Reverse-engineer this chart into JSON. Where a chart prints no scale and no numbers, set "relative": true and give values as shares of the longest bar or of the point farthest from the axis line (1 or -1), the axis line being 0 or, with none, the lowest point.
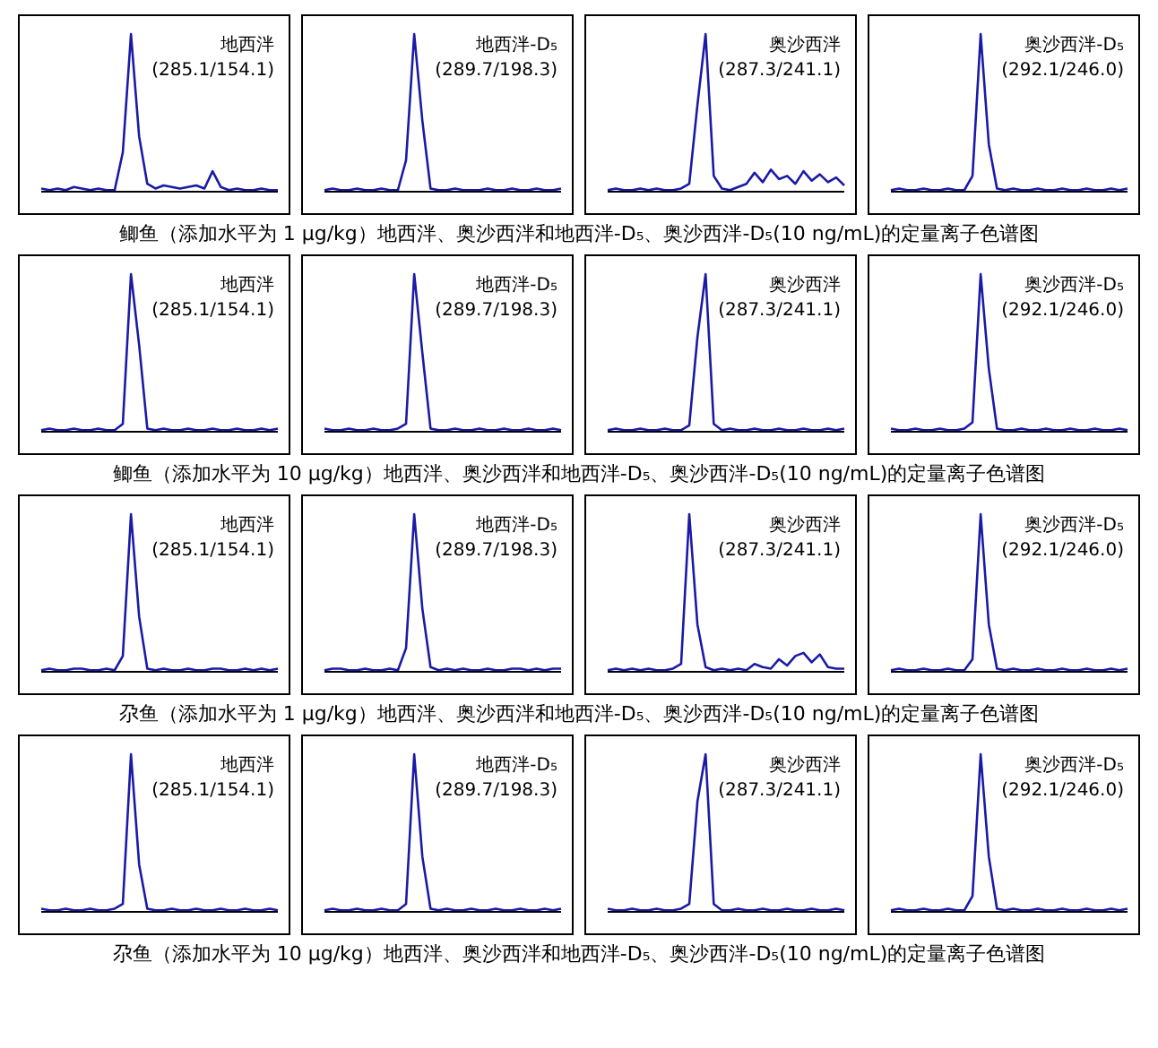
{
  "chart_data": [
    {
      "type": "line",
      "relative": true,
      "tick_labels": false,
      "categories": [
        null,
        null,
        null,
        null,
        null,
        null,
        null,
        null,
        null,
        null,
        null,
        null,
        null,
        null,
        null,
        null,
        null,
        null,
        null,
        null,
        null,
        null,
        null,
        null,
        null,
        null,
        null,
        null,
        null,
        null
      ],
      "series": [
        {
          "color": "#1a1aa6",
          "values": [
            0.02,
            0.01,
            0.02,
            0.01,
            0.03,
            0.02,
            0.01,
            0.02,
            0.01,
            0.01,
            0.25,
            1,
            0.35,
            0.05,
            0.02,
            0.04,
            0.03,
            0.02,
            0.03,
            0.04,
            0.02,
            0.13,
            0.03,
            0.01,
            0.02,
            0.01,
            0.01,
            0.02,
            0.01,
            0.01
          ]
        }
      ],
      "annotations": [
        "地西泮",
        "(285.1/154.1)",
        "鲫鱼（添加水平为 1 μg/kg）地西泮、奥沙西泮和地西泮-D₅、奥沙西泮-D₅(10 ng/mL)的定量离子色谱图"
      ]
    },
    {
      "type": "line",
      "relative": true,
      "tick_labels": false,
      "categories": [
        null,
        null,
        null,
        null,
        null,
        null,
        null,
        null,
        null,
        null,
        null,
        null,
        null,
        null,
        null,
        null,
        null,
        null,
        null,
        null,
        null,
        null,
        null,
        null,
        null,
        null,
        null,
        null,
        null,
        null
      ],
      "series": [
        {
          "color": "#1a1aa6",
          "values": [
            0.01,
            0.02,
            0.01,
            0.01,
            0.02,
            0.01,
            0.01,
            0.02,
            0.01,
            0.01,
            0.2,
            1,
            0.45,
            0.02,
            0.01,
            0.01,
            0.02,
            0.01,
            0.01,
            0.01,
            0.02,
            0.01,
            0.01,
            0.02,
            0.01,
            0.01,
            0.02,
            0.01,
            0.01,
            0.02
          ]
        }
      ],
      "annotations": [
        "地西泮-D₅",
        "(289.7/198.3)"
      ]
    },
    {
      "type": "line",
      "relative": true,
      "tick_labels": false,
      "categories": [
        null,
        null,
        null,
        null,
        null,
        null,
        null,
        null,
        null,
        null,
        null,
        null,
        null,
        null,
        null,
        null,
        null,
        null,
        null,
        null,
        null,
        null,
        null,
        null,
        null,
        null,
        null,
        null,
        null,
        null
      ],
      "series": [
        {
          "color": "#1a1aa6",
          "values": [
            0.01,
            0.02,
            0.01,
            0.01,
            0.02,
            0.01,
            0.02,
            0.01,
            0.01,
            0.02,
            0.05,
            0.55,
            1,
            0.1,
            0.02,
            0.01,
            0.03,
            0.05,
            0.12,
            0.06,
            0.14,
            0.08,
            0.1,
            0.05,
            0.13,
            0.07,
            0.11,
            0.06,
            0.09,
            0.04
          ]
        }
      ],
      "annotations": [
        "奥沙西泮",
        "(287.3/241.1)"
      ]
    },
    {
      "type": "line",
      "relative": true,
      "tick_labels": false,
      "categories": [
        null,
        null,
        null,
        null,
        null,
        null,
        null,
        null,
        null,
        null,
        null,
        null,
        null,
        null,
        null,
        null,
        null,
        null,
        null,
        null,
        null,
        null,
        null,
        null,
        null,
        null,
        null,
        null,
        null,
        null
      ],
      "series": [
        {
          "color": "#1a1aa6",
          "values": [
            0.01,
            0.02,
            0.01,
            0.01,
            0.02,
            0.01,
            0.01,
            0.02,
            0.01,
            0.01,
            0.1,
            1,
            0.3,
            0.02,
            0.01,
            0.02,
            0.01,
            0.01,
            0.02,
            0.01,
            0.01,
            0.02,
            0.01,
            0.01,
            0.02,
            0.01,
            0.01,
            0.02,
            0.01,
            0.02
          ]
        }
      ],
      "annotations": [
        "奥沙西泮-D₅",
        "(292.1/246.0)"
      ]
    },
    {
      "type": "line",
      "relative": true,
      "tick_labels": false,
      "categories": [
        null,
        null,
        null,
        null,
        null,
        null,
        null,
        null,
        null,
        null,
        null,
        null,
        null,
        null,
        null,
        null,
        null,
        null,
        null,
        null,
        null,
        null,
        null,
        null,
        null,
        null,
        null,
        null,
        null,
        null
      ],
      "series": [
        {
          "color": "#1a1aa6",
          "values": [
            0.01,
            0.02,
            0.01,
            0.01,
            0.02,
            0.01,
            0.01,
            0.02,
            0.01,
            0.01,
            0.05,
            1,
            0.55,
            0.02,
            0.01,
            0.02,
            0.01,
            0.01,
            0.02,
            0.01,
            0.01,
            0.02,
            0.01,
            0.01,
            0.02,
            0.01,
            0.01,
            0.02,
            0.01,
            0.02
          ]
        }
      ],
      "annotations": [
        "地西泮",
        "(285.1/154.1)",
        "鲫鱼（添加水平为 10 μg/kg）地西泮、奥沙西泮和地西泮-D₅、奥沙西泮-D₅(10 ng/mL)的定量离子色谱图"
      ]
    },
    {
      "type": "line",
      "relative": true,
      "tick_labels": false,
      "categories": [
        null,
        null,
        null,
        null,
        null,
        null,
        null,
        null,
        null,
        null,
        null,
        null,
        null,
        null,
        null,
        null,
        null,
        null,
        null,
        null,
        null,
        null,
        null,
        null,
        null,
        null,
        null,
        null,
        null,
        null
      ],
      "series": [
        {
          "color": "#1a1aa6",
          "values": [
            0.02,
            0.01,
            0.01,
            0.02,
            0.01,
            0.01,
            0.02,
            0.01,
            0.01,
            0.02,
            0.05,
            1,
            0.5,
            0.02,
            0.01,
            0.01,
            0.02,
            0.01,
            0.01,
            0.02,
            0.01,
            0.01,
            0.02,
            0.01,
            0.01,
            0.02,
            0.01,
            0.01,
            0.02,
            0.01
          ]
        }
      ],
      "annotations": [
        "地西泮-D₅",
        "(289.7/198.3)"
      ]
    },
    {
      "type": "line",
      "relative": true,
      "tick_labels": false,
      "categories": [
        null,
        null,
        null,
        null,
        null,
        null,
        null,
        null,
        null,
        null,
        null,
        null,
        null,
        null,
        null,
        null,
        null,
        null,
        null,
        null,
        null,
        null,
        null,
        null,
        null,
        null,
        null,
        null,
        null,
        null
      ],
      "series": [
        {
          "color": "#1a1aa6",
          "values": [
            0.01,
            0.02,
            0.01,
            0.01,
            0.02,
            0.01,
            0.01,
            0.02,
            0.01,
            0.01,
            0.04,
            0.6,
            1,
            0.05,
            0.01,
            0.02,
            0.01,
            0.01,
            0.02,
            0.01,
            0.01,
            0.02,
            0.01,
            0.01,
            0.02,
            0.01,
            0.01,
            0.02,
            0.01,
            0.02
          ]
        }
      ],
      "annotations": [
        "奥沙西泮",
        "(287.3/241.1)"
      ]
    },
    {
      "type": "line",
      "relative": true,
      "tick_labels": false,
      "categories": [
        null,
        null,
        null,
        null,
        null,
        null,
        null,
        null,
        null,
        null,
        null,
        null,
        null,
        null,
        null,
        null,
        null,
        null,
        null,
        null,
        null,
        null,
        null,
        null,
        null,
        null,
        null,
        null,
        null,
        null
      ],
      "series": [
        {
          "color": "#1a1aa6",
          "values": [
            0.02,
            0.01,
            0.01,
            0.02,
            0.01,
            0.01,
            0.02,
            0.01,
            0.01,
            0.02,
            0.06,
            1,
            0.4,
            0.02,
            0.01,
            0.01,
            0.02,
            0.01,
            0.01,
            0.02,
            0.01,
            0.01,
            0.02,
            0.01,
            0.01,
            0.02,
            0.01,
            0.01,
            0.02,
            0.01
          ]
        }
      ],
      "annotations": [
        "奥沙西泮-D₅",
        "(292.1/246.0)"
      ]
    },
    {
      "type": "line",
      "relative": true,
      "tick_labels": false,
      "categories": [
        null,
        null,
        null,
        null,
        null,
        null,
        null,
        null,
        null,
        null,
        null,
        null,
        null,
        null,
        null,
        null,
        null,
        null,
        null,
        null,
        null,
        null,
        null,
        null,
        null,
        null,
        null,
        null,
        null,
        null
      ],
      "series": [
        {
          "color": "#1a1aa6",
          "values": [
            0.01,
            0.02,
            0.01,
            0.01,
            0.02,
            0.02,
            0.01,
            0.01,
            0.02,
            0.01,
            0.1,
            1,
            0.35,
            0.02,
            0.01,
            0.02,
            0.01,
            0.01,
            0.02,
            0.01,
            0.01,
            0.02,
            0.02,
            0.01,
            0.01,
            0.02,
            0.01,
            0.02,
            0.01,
            0.02
          ]
        }
      ],
      "annotations": [
        "地西泮",
        "(285.1/154.1)",
        "尕鱼（添加水平为 1 μg/kg）地西泮、奥沙西泮和地西泮-D₅、奥沙西泮-D₅(10 ng/mL)的定量离子色谱图"
      ]
    },
    {
      "type": "line",
      "relative": true,
      "tick_labels": false,
      "categories": [
        null,
        null,
        null,
        null,
        null,
        null,
        null,
        null,
        null,
        null,
        null,
        null,
        null,
        null,
        null,
        null,
        null,
        null,
        null,
        null,
        null,
        null,
        null,
        null,
        null,
        null,
        null,
        null,
        null,
        null
      ],
      "series": [
        {
          "color": "#1a1aa6",
          "values": [
            0.01,
            0.02,
            0.02,
            0.01,
            0.01,
            0.02,
            0.01,
            0.01,
            0.02,
            0.01,
            0.15,
            1,
            0.4,
            0.03,
            0.01,
            0.02,
            0.01,
            0.02,
            0.01,
            0.01,
            0.02,
            0.01,
            0.01,
            0.02,
            0.02,
            0.01,
            0.02,
            0.01,
            0.02,
            0.02
          ]
        }
      ],
      "annotations": [
        "地西泮-D₅",
        "(289.7/198.3)"
      ]
    },
    {
      "type": "line",
      "relative": true,
      "tick_labels": false,
      "categories": [
        null,
        null,
        null,
        null,
        null,
        null,
        null,
        null,
        null,
        null,
        null,
        null,
        null,
        null,
        null,
        null,
        null,
        null,
        null,
        null,
        null,
        null,
        null,
        null,
        null,
        null,
        null,
        null,
        null,
        null
      ],
      "series": [
        {
          "color": "#1a1aa6",
          "values": [
            0.01,
            0.02,
            0.01,
            0.02,
            0.01,
            0.02,
            0.01,
            0.01,
            0.02,
            0.05,
            1,
            0.3,
            0.03,
            0.01,
            0.02,
            0.01,
            0.02,
            0.01,
            0.05,
            0.03,
            0.02,
            0.08,
            0.04,
            0.1,
            0.12,
            0.06,
            0.11,
            0.03,
            0.02,
            0.02
          ]
        }
      ],
      "annotations": [
        "奥沙西泮",
        "(287.3/241.1)"
      ]
    },
    {
      "type": "line",
      "relative": true,
      "tick_labels": false,
      "categories": [
        null,
        null,
        null,
        null,
        null,
        null,
        null,
        null,
        null,
        null,
        null,
        null,
        null,
        null,
        null,
        null,
        null,
        null,
        null,
        null,
        null,
        null,
        null,
        null,
        null,
        null,
        null,
        null,
        null,
        null
      ],
      "series": [
        {
          "color": "#1a1aa6",
          "values": [
            0.01,
            0.02,
            0.01,
            0.01,
            0.02,
            0.01,
            0.01,
            0.02,
            0.01,
            0.01,
            0.08,
            1,
            0.3,
            0.02,
            0.01,
            0.02,
            0.01,
            0.01,
            0.02,
            0.01,
            0.01,
            0.02,
            0.01,
            0.01,
            0.02,
            0.01,
            0.01,
            0.02,
            0.01,
            0.02
          ]
        }
      ],
      "annotations": [
        "奥沙西泮-D₅",
        "(292.1/246.0)"
      ]
    },
    {
      "type": "line",
      "relative": true,
      "tick_labels": false,
      "categories": [
        null,
        null,
        null,
        null,
        null,
        null,
        null,
        null,
        null,
        null,
        null,
        null,
        null,
        null,
        null,
        null,
        null,
        null,
        null,
        null,
        null,
        null,
        null,
        null,
        null,
        null,
        null,
        null,
        null,
        null
      ],
      "series": [
        {
          "color": "#1a1aa6",
          "values": [
            0.02,
            0.01,
            0.01,
            0.02,
            0.01,
            0.01,
            0.02,
            0.01,
            0.01,
            0.02,
            0.05,
            1,
            0.3,
            0.02,
            0.01,
            0.01,
            0.02,
            0.01,
            0.01,
            0.02,
            0.01,
            0.01,
            0.02,
            0.01,
            0.01,
            0.02,
            0.01,
            0.01,
            0.02,
            0.01
          ]
        }
      ],
      "annotations": [
        "地西泮",
        "(285.1/154.1)",
        "尕鱼（添加水平为 10 μg/kg）地西泮、奥沙西泮和地西泮-D₅、奥沙西泮-D₅(10 ng/mL)的定量离子色谱图"
      ]
    },
    {
      "type": "line",
      "relative": true,
      "tick_labels": false,
      "categories": [
        null,
        null,
        null,
        null,
        null,
        null,
        null,
        null,
        null,
        null,
        null,
        null,
        null,
        null,
        null,
        null,
        null,
        null,
        null,
        null,
        null,
        null,
        null,
        null,
        null,
        null,
        null,
        null,
        null,
        null
      ],
      "series": [
        {
          "color": "#1a1aa6",
          "values": [
            0.01,
            0.02,
            0.01,
            0.01,
            0.02,
            0.01,
            0.01,
            0.02,
            0.01,
            0.01,
            0.05,
            1,
            0.35,
            0.02,
            0.01,
            0.02,
            0.01,
            0.01,
            0.02,
            0.01,
            0.01,
            0.02,
            0.01,
            0.01,
            0.02,
            0.01,
            0.01,
            0.02,
            0.01,
            0.02
          ]
        }
      ],
      "annotations": [
        "地西泮-D₅",
        "(289.7/198.3)"
      ]
    },
    {
      "type": "line",
      "relative": true,
      "tick_labels": false,
      "categories": [
        null,
        null,
        null,
        null,
        null,
        null,
        null,
        null,
        null,
        null,
        null,
        null,
        null,
        null,
        null,
        null,
        null,
        null,
        null,
        null,
        null,
        null,
        null,
        null,
        null,
        null,
        null,
        null,
        null,
        null
      ],
      "series": [
        {
          "color": "#1a1aa6",
          "values": [
            0.02,
            0.01,
            0.01,
            0.02,
            0.01,
            0.01,
            0.02,
            0.01,
            0.01,
            0.02,
            0.05,
            0.7,
            1,
            0.05,
            0.01,
            0.01,
            0.02,
            0.01,
            0.01,
            0.02,
            0.01,
            0.01,
            0.02,
            0.01,
            0.01,
            0.02,
            0.01,
            0.01,
            0.02,
            0.01
          ]
        }
      ],
      "annotations": [
        "奥沙西泮",
        "(287.3/241.1)"
      ]
    },
    {
      "type": "line",
      "relative": true,
      "tick_labels": false,
      "categories": [
        null,
        null,
        null,
        null,
        null,
        null,
        null,
        null,
        null,
        null,
        null,
        null,
        null,
        null,
        null,
        null,
        null,
        null,
        null,
        null,
        null,
        null,
        null,
        null,
        null,
        null,
        null,
        null,
        null,
        null
      ],
      "series": [
        {
          "color": "#1a1aa6",
          "values": [
            0.01,
            0.02,
            0.01,
            0.01,
            0.02,
            0.01,
            0.01,
            0.02,
            0.01,
            0.01,
            0.1,
            1,
            0.35,
            0.02,
            0.01,
            0.02,
            0.01,
            0.01,
            0.02,
            0.01,
            0.01,
            0.02,
            0.01,
            0.01,
            0.02,
            0.01,
            0.01,
            0.02,
            0.01,
            0.02
          ]
        }
      ],
      "annotations": [
        "奥沙西泮-D₅",
        "(292.1/246.0)"
      ]
    }
  ]
}
